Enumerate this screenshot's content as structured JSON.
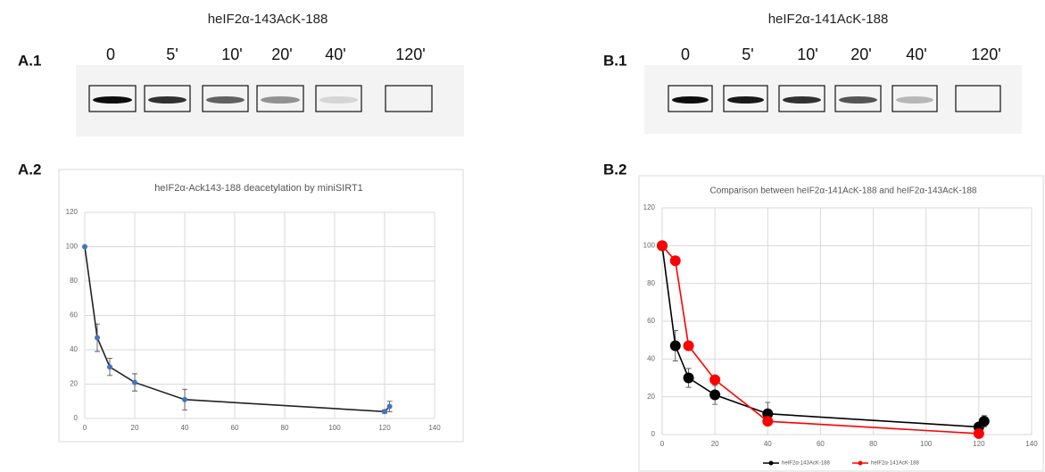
{
  "blots": [
    {
      "panel": "A.1",
      "title": "heIF2α-143AcK-188",
      "lanes": [
        "0",
        "5'",
        "10'",
        "20'",
        "40'",
        "120'"
      ]
    },
    {
      "panel": "B.1",
      "title": "heIF2α-141AcK-188",
      "lanes": [
        "0",
        "5'",
        "10'",
        "20'",
        "40'",
        "120'"
      ]
    }
  ],
  "chart_data": [
    {
      "type": "line",
      "panel": "A.2",
      "title": "heIF2α-Ack143-188 deacetylation by miniSIRT1",
      "series": [
        {
          "color": "#222222",
          "marker_color": "#4472c4",
          "x": [
            0,
            5,
            10,
            20,
            40,
            120,
            122
          ],
          "values": [
            100,
            47,
            30,
            21,
            11,
            4,
            7
          ],
          "errors": [
            0,
            8,
            5,
            5,
            6,
            1,
            3
          ]
        }
      ],
      "xlim": [
        0,
        140
      ],
      "xticks": [
        0,
        20,
        40,
        60,
        80,
        100,
        120,
        140
      ],
      "ylim": [
        0,
        120
      ],
      "yticks": [
        0,
        20,
        40,
        60,
        80,
        100,
        120
      ],
      "grid": true
    },
    {
      "type": "line",
      "panel": "B.2",
      "title": "Comparison between heIF2α-141AcK-188 and heIF2α-143AcK-188",
      "series": [
        {
          "name": "heIF2α-143AcK-188",
          "color": "#000000",
          "marker_color": "#000000",
          "x": [
            0,
            5,
            10,
            20,
            40,
            120,
            122
          ],
          "values": [
            100,
            47,
            30,
            21,
            11,
            4,
            7
          ],
          "errors": [
            0,
            8,
            5,
            5,
            6,
            1,
            3
          ]
        },
        {
          "name": "heIF2α-141AcK-188",
          "color": "#ff0000",
          "marker_color": "#ff0000",
          "x": [
            0,
            5,
            10,
            20,
            40,
            120
          ],
          "values": [
            100,
            92,
            47,
            29,
            7,
            0.5
          ]
        }
      ],
      "xlim": [
        0,
        140
      ],
      "xticks": [
        0,
        20,
        40,
        60,
        80,
        100,
        120,
        140
      ],
      "ylim": [
        0,
        120
      ],
      "yticks": [
        0,
        20,
        40,
        60,
        80,
        100,
        120
      ],
      "grid": true,
      "legend": "bottom"
    }
  ]
}
